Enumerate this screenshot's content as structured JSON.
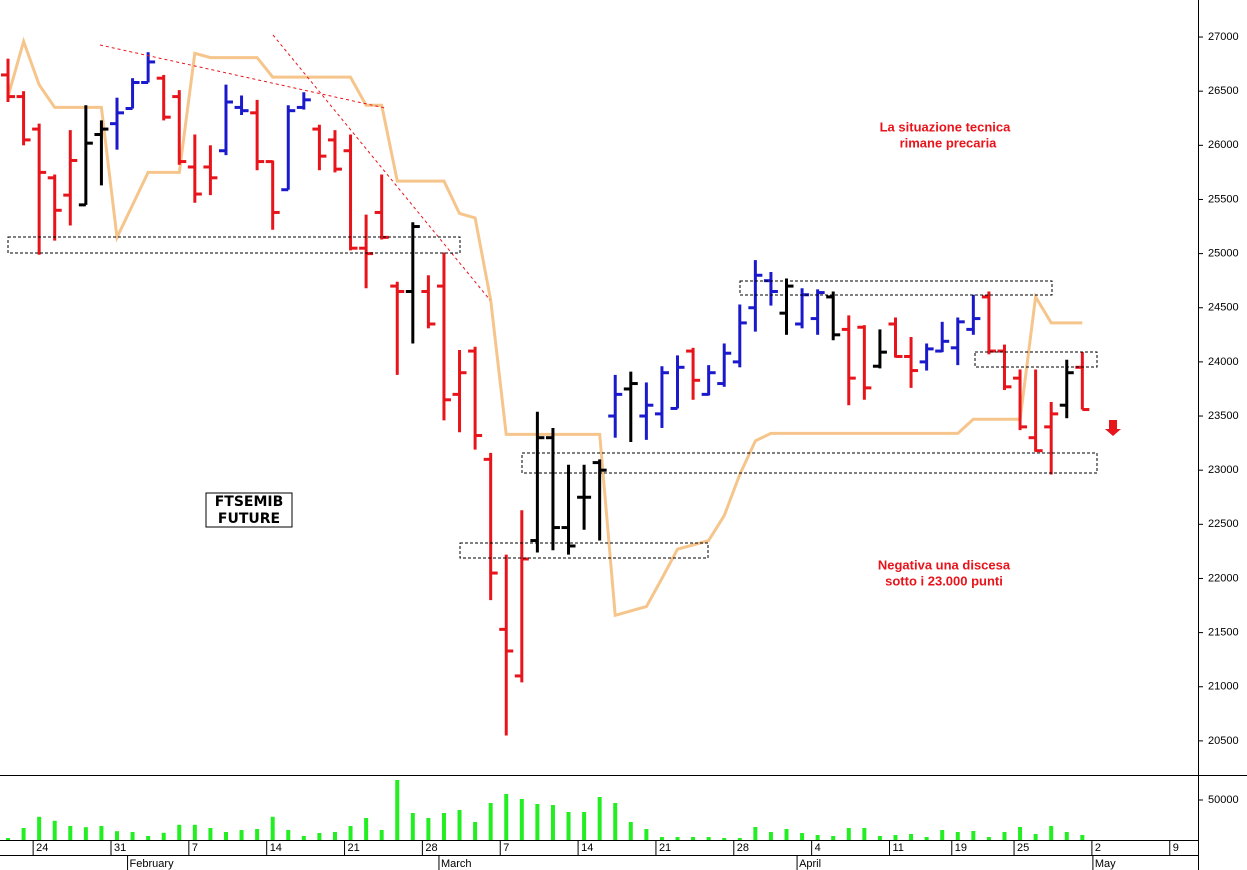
{
  "chart_data": {
    "type": "ohlc",
    "categories": [
      null,
      null,
      "24",
      null,
      null,
      null,
      null,
      "31",
      null,
      null,
      null,
      null,
      "7",
      null,
      null,
      null,
      null,
      "14",
      null,
      null,
      null,
      null,
      "21",
      null,
      null,
      null,
      null,
      "28",
      null,
      null,
      null,
      null,
      "7",
      null,
      null,
      null,
      null,
      "14",
      null,
      null,
      null,
      null,
      "21",
      null,
      null,
      null,
      null,
      "28",
      null,
      null,
      null,
      null,
      "4",
      null,
      null,
      null,
      null,
      "11",
      null,
      null,
      null,
      "19",
      null,
      null,
      null,
      "25",
      null,
      null,
      null,
      null,
      "2",
      null,
      null,
      null,
      null,
      "9",
      null
    ],
    "month_labels": [
      null,
      null,
      null,
      null,
      null,
      null,
      null,
      null,
      "February",
      null,
      null,
      null,
      null,
      null,
      null,
      null,
      null,
      null,
      null,
      null,
      null,
      null,
      null,
      null,
      null,
      null,
      null,
      null,
      "March",
      null,
      null,
      null,
      null,
      null,
      null,
      null,
      null,
      null,
      null,
      null,
      null,
      null,
      null,
      null,
      null,
      null,
      null,
      null,
      null,
      null,
      null,
      "April",
      null,
      null,
      null,
      null,
      null,
      null,
      null,
      null,
      null,
      null,
      null,
      null,
      null,
      null,
      null,
      null,
      null,
      null,
      "May",
      null,
      null,
      null,
      null,
      null,
      null
    ],
    "open": [
      26650,
      26450,
      26150,
      25700,
      25540,
      25450,
      26100,
      26200,
      26340,
      26580,
      26620,
      26450,
      25800,
      25800,
      25950,
      26350,
      26300,
      25850,
      25590,
      26350,
      26150,
      26050,
      25950,
      25050,
      25380,
      24700,
      24650,
      24650,
      24700,
      23700,
      24100,
      23100,
      21530,
      21100,
      22350,
      23300,
      22470,
      22750,
      23070,
      23500,
      23750,
      23500,
      23520,
      23570,
      24100,
      23700,
      23800,
      24000,
      24500,
      24750,
      24450,
      24350,
      24400,
      24600,
      24300,
      24320,
      23960,
      24350,
      24050,
      24000,
      24100,
      24130,
      24300,
      24600,
      24100,
      23850,
      23300,
      23400,
      23600,
      23950,
      null,
      null,
      null,
      null,
      null,
      null,
      null
    ],
    "high": [
      26800,
      26500,
      26200,
      25730,
      26140,
      26370,
      26230,
      26440,
      26620,
      26860,
      26650,
      26510,
      26100,
      26000,
      26560,
      26460,
      26420,
      25860,
      26370,
      26490,
      26190,
      26140,
      26100,
      25360,
      25730,
      24740,
      25290,
      24800,
      25010,
      24110,
      24140,
      23160,
      22220,
      22630,
      23540,
      23390,
      23050,
      23050,
      23100,
      23880,
      23910,
      23810,
      23960,
      24060,
      24130,
      23970,
      24170,
      24530,
      24940,
      24830,
      24770,
      24680,
      24670,
      24650,
      24430,
      24340,
      24300,
      24410,
      24230,
      24170,
      24370,
      24410,
      24620,
      24650,
      24160,
      23930,
      23930,
      23630,
      24020,
      24090,
      null,
      null,
      null,
      null,
      null,
      null,
      null
    ],
    "low": [
      26400,
      26000,
      24990,
      25120,
      25260,
      25450,
      25630,
      25960,
      26340,
      26580,
      26230,
      25820,
      25470,
      25540,
      25910,
      26280,
      25770,
      25220,
      25590,
      26330,
      25770,
      25750,
      25030,
      24680,
      25130,
      23880,
      24170,
      24310,
      23460,
      23350,
      23190,
      21800,
      20550,
      21040,
      22240,
      22260,
      22220,
      22450,
      22350,
      23300,
      23260,
      23280,
      23390,
      23570,
      23650,
      23690,
      23770,
      23950,
      24280,
      24520,
      24250,
      24310,
      24250,
      24200,
      23600,
      23650,
      23940,
      24040,
      23760,
      23920,
      24090,
      23970,
      24250,
      24070,
      23740,
      23370,
      23170,
      22960,
      23480,
      23560,
      null,
      null,
      null,
      null,
      null,
      null,
      null
    ],
    "close": [
      26450,
      26050,
      25750,
      25400,
      25860,
      26020,
      26150,
      26300,
      26580,
      26770,
      26260,
      25850,
      25550,
      25700,
      26400,
      26320,
      25850,
      25380,
      26320,
      26420,
      25900,
      25780,
      25050,
      25000,
      25150,
      24650,
      25250,
      24350,
      23650,
      23900,
      23320,
      22050,
      21330,
      22180,
      23300,
      22470,
      22300,
      22750,
      23000,
      23700,
      23800,
      23600,
      23900,
      23950,
      23830,
      23900,
      24080,
      24360,
      24800,
      24650,
      24700,
      24620,
      24640,
      24250,
      23850,
      23760,
      24090,
      24050,
      23920,
      24120,
      24190,
      24370,
      24400,
      24100,
      23770,
      23400,
      23180,
      23520,
      23900,
      23560,
      null,
      null,
      null,
      null,
      null,
      null,
      null
    ],
    "trend": [
      "down",
      "down",
      "down",
      "down",
      "down",
      "neutral",
      "neutral",
      "up",
      "up",
      "up",
      "down",
      "down",
      "down",
      "down",
      "up",
      "up",
      "down",
      "down",
      "up",
      "up",
      "down",
      "down",
      "down",
      "down",
      "down",
      "down",
      "neutral",
      "down",
      "down",
      "down",
      "down",
      "down",
      "down",
      "down",
      "neutral",
      "neutral",
      "neutral",
      "neutral",
      "neutral",
      "up",
      "neutral",
      "up",
      "up",
      "up",
      "down",
      "up",
      "up",
      "up",
      "up",
      "up",
      "neutral",
      "up",
      "up",
      "neutral",
      "down",
      "down",
      "neutral",
      "down",
      "down",
      "up",
      "up",
      "up",
      "up",
      "down",
      "down",
      "down",
      "down",
      "down",
      "neutral",
      "down",
      null,
      null,
      null,
      null,
      null,
      null,
      null
    ],
    "palette": {
      "down": "#e8141b",
      "up": "#1a1acc",
      "neutral": "#000000"
    },
    "ylim": [
      20185,
      27342
    ],
    "yticks": [
      20500,
      21000,
      21500,
      22000,
      22500,
      23000,
      23500,
      24000,
      24500,
      25000,
      25500,
      26000,
      26500,
      27000
    ],
    "line": {
      "color": "#f6c58c",
      "values": [
        26450,
        26960,
        26560,
        26350,
        26350,
        26350,
        26350,
        25150,
        25450,
        25750,
        25750,
        25750,
        26850,
        26810,
        26810,
        26810,
        26810,
        26630,
        26630,
        26630,
        26630,
        26630,
        26630,
        26370,
        26370,
        25670,
        25670,
        25670,
        25670,
        25370,
        25330,
        24570,
        23330,
        23330,
        23330,
        23330,
        23330,
        23330,
        23330,
        21660,
        21700,
        21740,
        22000,
        22270,
        22310,
        22350,
        22580,
        22960,
        23270,
        23340,
        23340,
        23340,
        23340,
        23340,
        23340,
        23340,
        23340,
        23340,
        23340,
        23340,
        23340,
        23340,
        23470,
        23470,
        23470,
        23470,
        24600,
        24360,
        24360,
        24360,
        null,
        null,
        null,
        null,
        null,
        null,
        null
      ]
    },
    "volume": {
      "color": "#22ee22",
      "ylim": [
        0,
        80000
      ],
      "yticks": [
        50000
      ],
      "values": [
        2500,
        15000,
        29000,
        24000,
        17500,
        16000,
        17500,
        11000,
        10000,
        5000,
        9000,
        19000,
        19000,
        15000,
        10000,
        12500,
        13750,
        29000,
        12500,
        5000,
        8750,
        10000,
        17500,
        27500,
        12500,
        75000,
        33750,
        27500,
        33750,
        37500,
        22500,
        46250,
        57500,
        51250,
        45000,
        43750,
        35000,
        35000,
        53750,
        46250,
        22500,
        13750,
        3750,
        3750,
        3750,
        3750,
        2500,
        2500,
        16250,
        10000,
        13750,
        8750,
        6250,
        5000,
        15000,
        15000,
        5000,
        6250,
        7500,
        3750,
        12500,
        10000,
        11250,
        3750,
        10000,
        16250,
        7500,
        17500,
        10000,
        6250,
        null,
        null,
        null,
        null,
        null,
        null,
        null
      ]
    },
    "label_box": [
      "FTSEMIB",
      "FUTURE"
    ],
    "annotations": [
      [
        "La situazione tecnica",
        "rimane precaria"
      ],
      [
        "Negativa una discesa",
        "sotto i 23.000 punti"
      ]
    ]
  }
}
